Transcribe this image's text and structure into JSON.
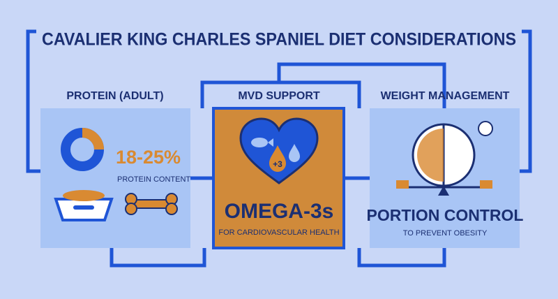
{
  "title": "CAVALIER KING CHARLES SPANIEL DIET CONSIDERATIONS",
  "panels": [
    {
      "heading": "PROTEIN (ADULT)",
      "highlight": "18-25%",
      "caption": "PROTEIN CONTENT"
    },
    {
      "heading": "MVD SUPPORT",
      "badge": "+3",
      "highlight": "OMEGA-3s",
      "caption": "FOR CARDIOVASCULAR HEALTH"
    },
    {
      "heading": "WEIGHT MANAGEMENT",
      "highlight": "PORTION CONTROL",
      "caption": "TO PREVENT OBESITY"
    }
  ]
}
